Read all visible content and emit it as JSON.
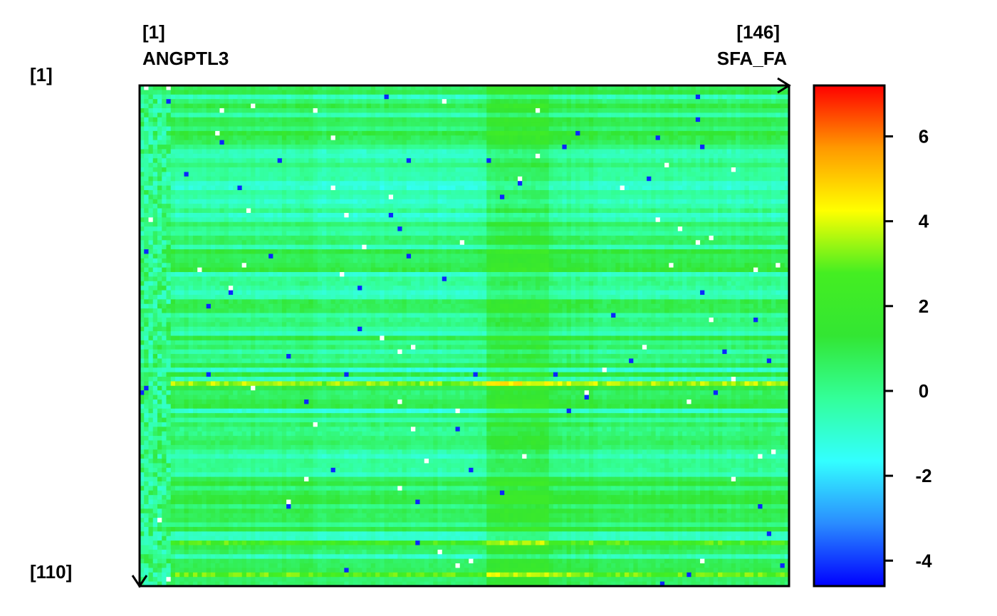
{
  "chart_data": {
    "type": "heatmap",
    "n_cols": 146,
    "n_rows": 110,
    "col_first_index": "[1]",
    "col_first_name": "ANGPTL3",
    "col_last_index": "[146]",
    "col_last_name": "SFA_FA",
    "row_first_index": "[1]",
    "row_last_index": "[110]",
    "colorbar": {
      "min": -4.6,
      "max": 7.2,
      "ticks": [
        "6",
        "4",
        "2",
        "0",
        "-2",
        "-4"
      ],
      "tick_values": [
        6,
        4,
        2,
        0,
        -2,
        -4
      ],
      "colors": [
        "#0000ff",
        "#2a8cff",
        "#33ffff",
        "#33ff99",
        "#33e633",
        "#44ee22",
        "#ffff00",
        "#ff9900",
        "#ff0000"
      ]
    },
    "missing_color": "#ffffff",
    "typical_range": [
      -2,
      2
    ],
    "notable_rows": [
      {
        "row": 65,
        "mean": 3.5,
        "note": "yellow band"
      },
      {
        "row": 100,
        "mean": 2.6,
        "note": "yellow/blue mixed band"
      },
      {
        "row": 107,
        "mean": 3.0,
        "note": "yellow band"
      }
    ]
  }
}
